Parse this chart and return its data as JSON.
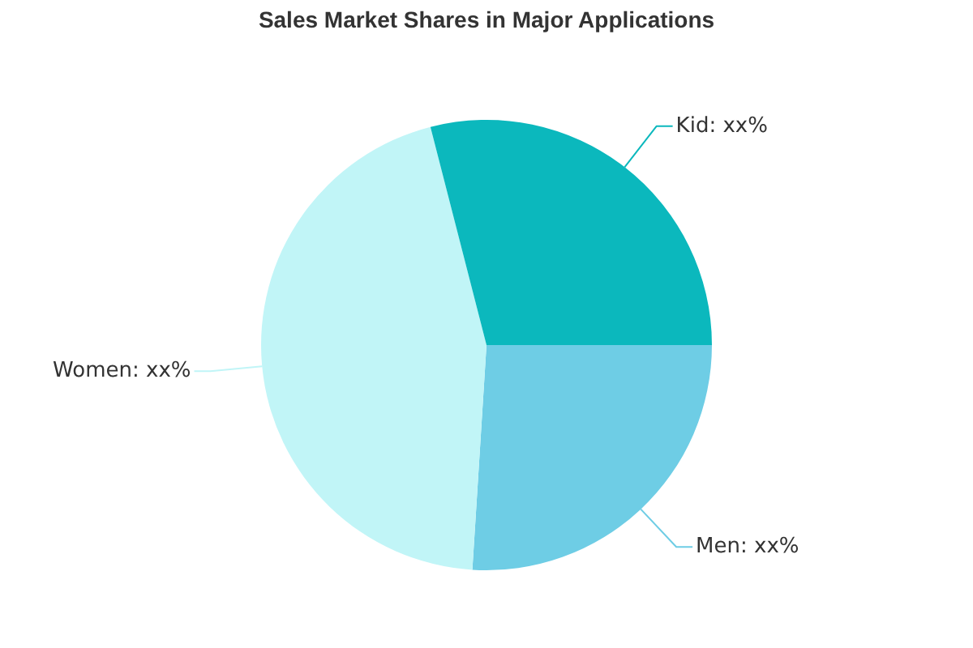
{
  "chart_data": {
    "type": "pie",
    "title": "Sales Market Shares in Major Applications",
    "categories": [
      "Men",
      "Women",
      "Kid"
    ],
    "values": [
      26,
      45,
      29
    ],
    "colors": [
      "#6ecde5",
      "#c1f5f7",
      "#0bb8bd"
    ],
    "value_labels": [
      "xx%",
      "xx%",
      "xx%"
    ]
  }
}
